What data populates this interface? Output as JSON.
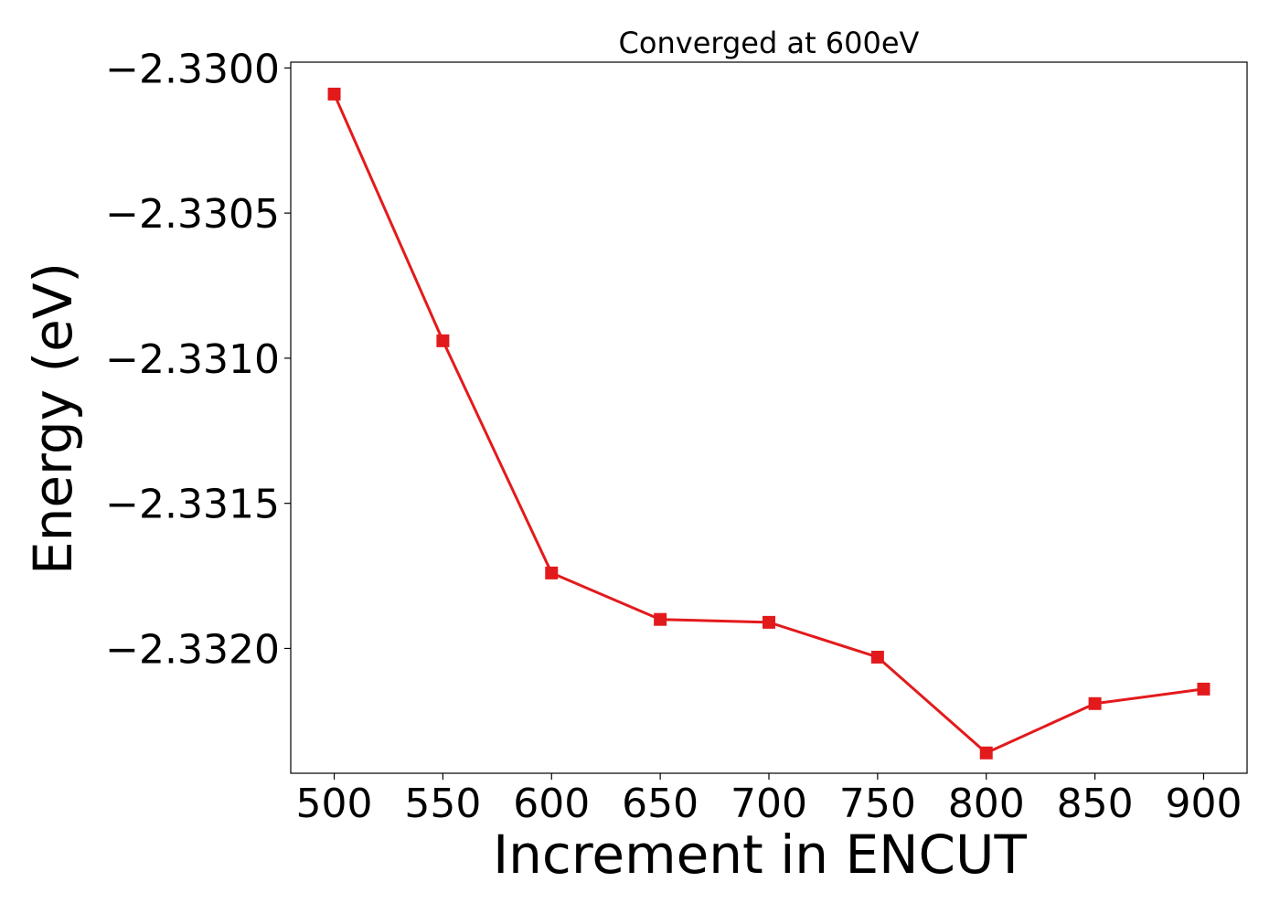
{
  "chart_data": {
    "type": "line",
    "title": "Converged at 600eV",
    "xlabel": "Increment in ENCUT",
    "ylabel": "Energy (eV)",
    "x": [
      500,
      550,
      600,
      650,
      700,
      750,
      800,
      850,
      900
    ],
    "series": [
      {
        "values": [
          -2.33009,
          -2.33094,
          -2.33174,
          -2.3319,
          -2.33191,
          -2.33203,
          -2.33236,
          -2.33219,
          -2.33214
        ],
        "color": "#e31a1c",
        "marker": "square"
      }
    ],
    "x_ticks": [
      500,
      550,
      600,
      650,
      700,
      750,
      800,
      850,
      900
    ],
    "y_ticks": [
      -2.33,
      -2.3305,
      -2.331,
      -2.3315,
      -2.332
    ],
    "y_tick_labels": [
      "−2.3300",
      "−2.3305",
      "−2.3310",
      "−2.3315",
      "−2.3320"
    ],
    "xlim": [
      480,
      920
    ],
    "ylim": [
      -2.33243,
      -2.32998
    ],
    "grid": false,
    "legend": false
  }
}
